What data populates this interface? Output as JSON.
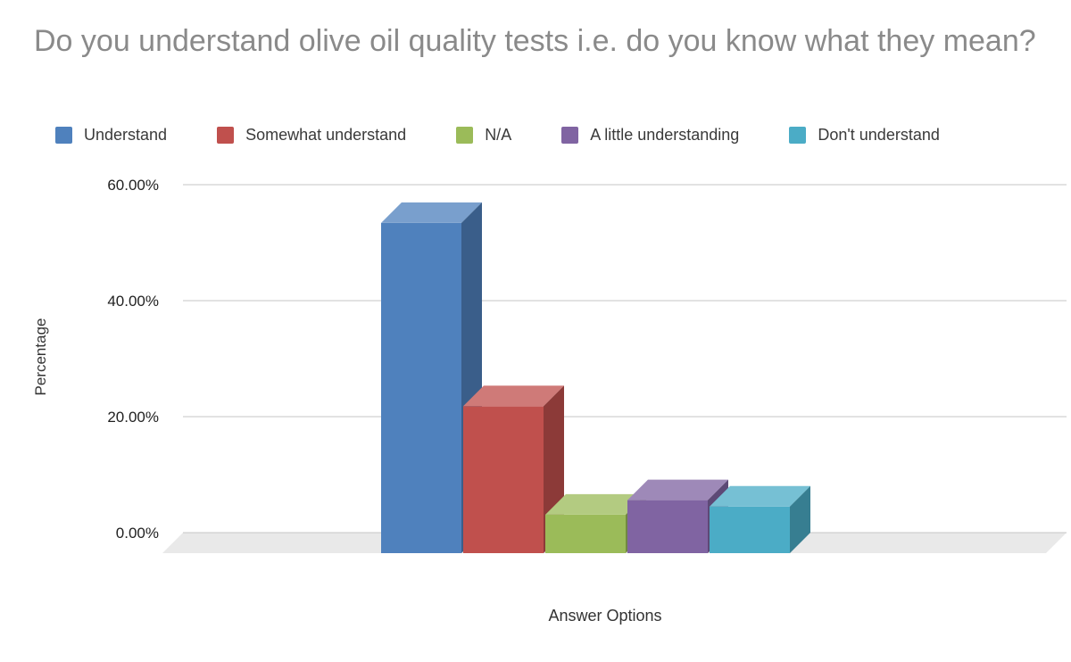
{
  "chart_data": {
    "type": "bar",
    "style": "3d",
    "title": "Do you understand olive oil quality tests i.e. do you know what they mean?",
    "xlabel": "Answer Options",
    "ylabel": "Percentage",
    "categories": [
      "Understand",
      "Somewhat understand",
      "N/A",
      "A little understanding",
      "Don't understand"
    ],
    "values": [
      53.4,
      21.8,
      3.1,
      5.6,
      4.5
    ],
    "unit": "%",
    "ylim": [
      0,
      60
    ],
    "yticks": [
      {
        "value": 0,
        "label": "0.00%"
      },
      {
        "value": 20,
        "label": "20.00%"
      },
      {
        "value": 40,
        "label": "40.00%"
      },
      {
        "value": 60,
        "label": "60.00%"
      }
    ],
    "grid": true,
    "legend_position": "top",
    "colors": [
      "#4f81bd",
      "#c0504d",
      "#9bbb59",
      "#8064a2",
      "#4bacc6"
    ],
    "gridline_color": "#c6c6c6",
    "floor_color": "#e9e9e9",
    "title_color": "#8a8a8a"
  }
}
